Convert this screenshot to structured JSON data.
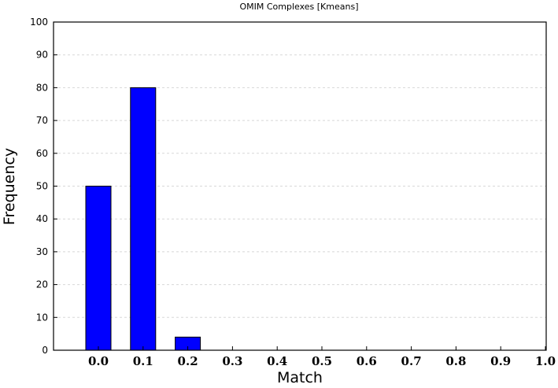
{
  "chart_data": {
    "type": "bar",
    "title": "OMIM Complexes [Kmeans]",
    "xlabel": "Match",
    "ylabel": "Frequency",
    "categories": [
      "0.0",
      "0.1",
      "0.2",
      "0.3",
      "0.4",
      "0.5",
      "0.6",
      "0.7",
      "0.8",
      "0.9",
      "1.0"
    ],
    "values": [
      50,
      80,
      4,
      0,
      0,
      0,
      0,
      0,
      0,
      0,
      0
    ],
    "x_ticks": [
      "0.0",
      "0.1",
      "0.2",
      "0.3",
      "0.4",
      "0.5",
      "0.6",
      "0.7",
      "0.8",
      "0.9",
      "1.0"
    ],
    "y_ticks": [
      0,
      10,
      20,
      30,
      40,
      50,
      60,
      70,
      80,
      90,
      100
    ],
    "ylim": [
      0,
      100
    ],
    "grid": true,
    "colors": {
      "bar": "#0000ff",
      "grid": "#d8d8d8"
    }
  }
}
